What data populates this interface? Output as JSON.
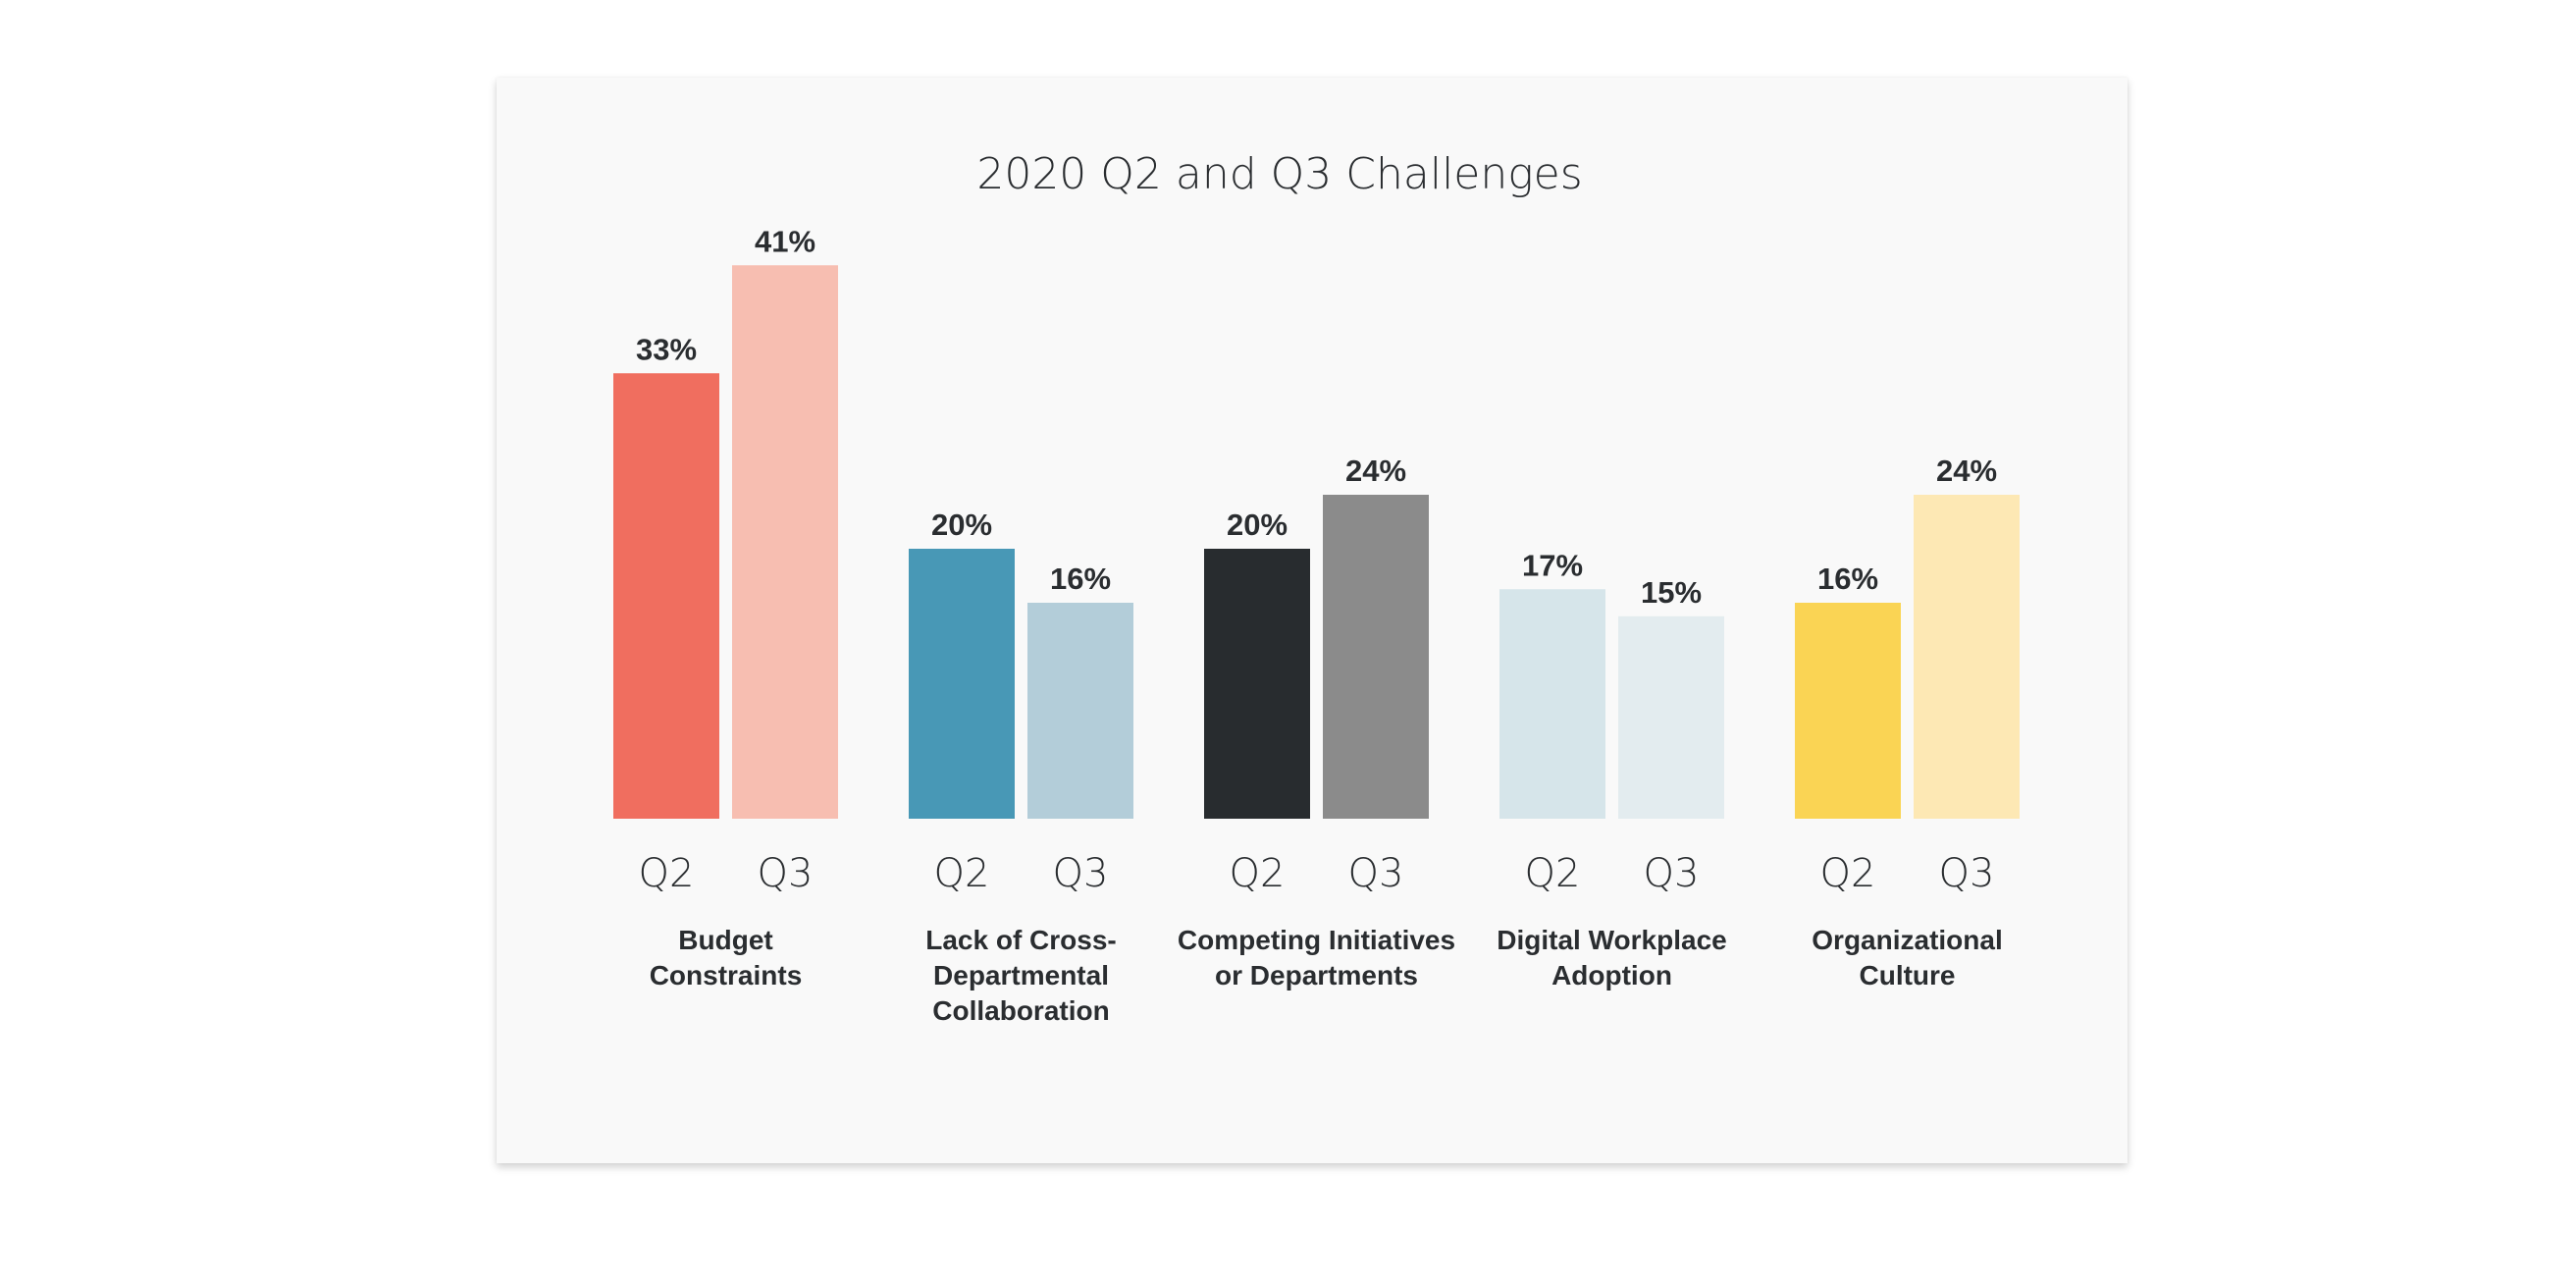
{
  "chart_data": {
    "type": "bar",
    "title": "2020 Q2 and Q3 Challenges",
    "xlabel": "",
    "ylabel": "",
    "ylim": [
      0,
      41
    ],
    "grid": false,
    "legend": "none",
    "value_suffix": "%",
    "groups": [
      {
        "label_lines": [
          "Budget",
          "Constraints"
        ],
        "bars": [
          {
            "name": "Q2",
            "value": 33,
            "color": "#f06e5f"
          },
          {
            "name": "Q3",
            "value": 41,
            "color": "#f7beb1"
          }
        ]
      },
      {
        "label_lines": [
          "Lack of Cross-",
          "Departmental",
          "Collaboration"
        ],
        "bars": [
          {
            "name": "Q2",
            "value": 20,
            "color": "#4898b6"
          },
          {
            "name": "Q3",
            "value": 16,
            "color": "#b3cdd9"
          }
        ]
      },
      {
        "label_lines": [
          "Competing Initiatives",
          "or Departments"
        ],
        "bars": [
          {
            "name": "Q2",
            "value": 20,
            "color": "#282c2f"
          },
          {
            "name": "Q3",
            "value": 24,
            "color": "#8b8b8b"
          }
        ]
      },
      {
        "label_lines": [
          "Digital Workplace",
          "Adoption"
        ],
        "bars": [
          {
            "name": "Q2",
            "value": 17,
            "color": "#d6e5ea"
          },
          {
            "name": "Q3",
            "value": 15,
            "color": "#e3ecef"
          }
        ]
      },
      {
        "label_lines": [
          "Organizational",
          "Culture"
        ],
        "bars": [
          {
            "name": "Q2",
            "value": 16,
            "color": "#fad454"
          },
          {
            "name": "Q3",
            "value": 24,
            "color": "#fde8b4"
          }
        ]
      }
    ]
  }
}
